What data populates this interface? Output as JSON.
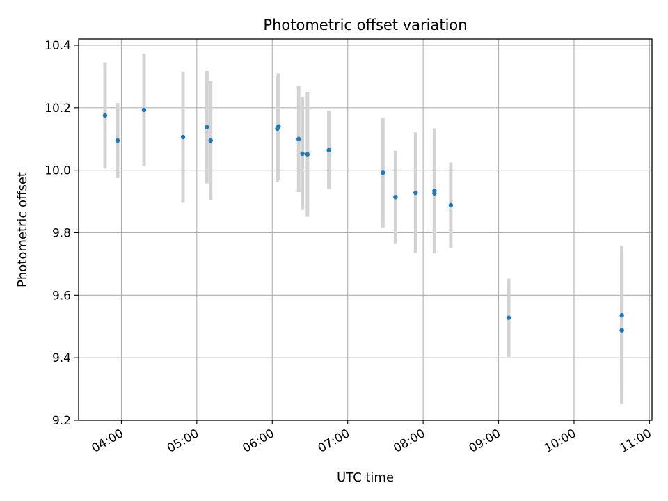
{
  "chart_data": {
    "type": "scatter",
    "title": "Photometric offset variation",
    "xlabel": "UTC time",
    "ylabel": "Photometric offset",
    "xlim": [
      "03:26",
      "11:02"
    ],
    "ylim": [
      9.2,
      10.42
    ],
    "x_ticks": [
      "04:00",
      "05:00",
      "06:00",
      "07:00",
      "08:00",
      "09:00",
      "10:00",
      "11:00"
    ],
    "y_ticks": [
      "9.2",
      "9.4",
      "9.6",
      "9.8",
      "10.0",
      "10.2",
      "10.4"
    ],
    "grid": true,
    "colors": {
      "point": "#1f77b4",
      "errorbar": "#d3d3d3",
      "grid": "#b0b0b0"
    },
    "series": [
      {
        "x": [
          "03:47",
          "03:57",
          "04:18",
          "04:49",
          "05:08",
          "05:11",
          "06:04",
          "06:05",
          "06:21",
          "06:24",
          "06:28",
          "06:45",
          "07:28",
          "07:38",
          "07:54",
          "08:09",
          "08:09",
          "08:22",
          "09:08",
          "10:38",
          "10:38"
        ],
        "y": [
          10.175,
          10.095,
          10.193,
          10.106,
          10.138,
          10.095,
          10.133,
          10.14,
          10.1,
          10.053,
          10.051,
          10.064,
          9.992,
          9.914,
          9.928,
          9.934,
          9.926,
          9.888,
          9.528,
          9.536,
          9.488
        ],
        "err": [
          0.17,
          0.12,
          0.18,
          0.21,
          0.18,
          0.19,
          0.17,
          0.17,
          0.17,
          0.18,
          0.2,
          0.125,
          0.175,
          0.148,
          0.193,
          0.2,
          0.175,
          0.137,
          0.125,
          0.222,
          0.237
        ]
      }
    ]
  }
}
